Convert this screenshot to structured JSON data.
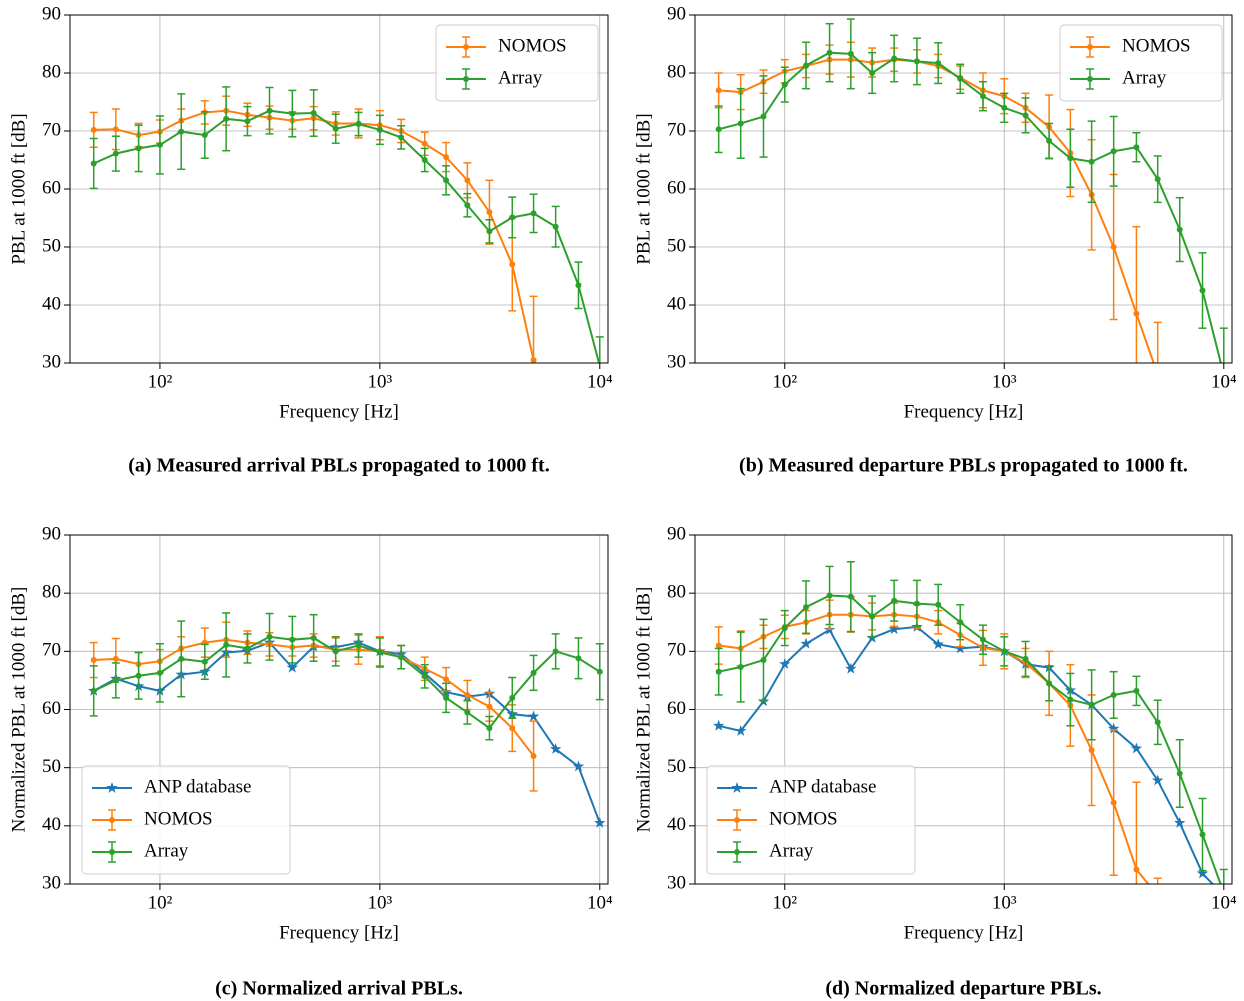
{
  "chart_data": [
    {
      "type": "line",
      "caption": "(a) Measured arrival PBLs propagated to 1000 ft.",
      "xlabel": "Frequency [Hz]",
      "ylabel": "PBL at 1000 ft [dB]",
      "x": [
        50,
        63,
        80,
        100,
        125,
        160,
        200,
        250,
        315,
        400,
        500,
        630,
        800,
        1000,
        1250,
        1600,
        2000,
        2500,
        3150,
        4000,
        5000,
        6300,
        8000,
        10000
      ],
      "log_x": true,
      "grid": true,
      "legend": "upper right",
      "xlim": [
        39,
        10900
      ],
      "ylim": [
        30,
        90
      ],
      "xticks": [
        {
          "value": 100,
          "label": "10²"
        },
        {
          "value": 1000,
          "label": "10³"
        },
        {
          "value": 10000,
          "label": "10⁴"
        }
      ],
      "yticks": [
        30,
        40,
        50,
        60,
        70,
        80,
        90
      ],
      "series": [
        {
          "name": "NOMOS",
          "color": "#ff7f0e",
          "marker": "dot",
          "values": [
            70.2,
            70.3,
            69.3,
            69.9,
            71.8,
            73.2,
            73.5,
            72.8,
            72.3,
            71.8,
            72.2,
            71.3,
            71.3,
            71.0,
            70.0,
            67.8,
            65.5,
            61.5,
            56.0,
            47.0,
            30.5,
            null,
            null,
            null
          ],
          "errors": [
            3,
            3.5,
            2,
            2,
            2,
            2,
            2.5,
            2,
            2,
            1.5,
            2,
            2,
            2.5,
            2.5,
            2,
            2,
            2.5,
            3,
            5.5,
            8,
            11,
            null,
            null,
            null
          ]
        },
        {
          "name": "Array",
          "color": "#2ca02c",
          "marker": "dot",
          "values": [
            64.4,
            66.1,
            67.0,
            67.6,
            69.9,
            69.3,
            72.1,
            71.7,
            73.5,
            73.0,
            73.1,
            70.4,
            71.2,
            70.2,
            68.9,
            65.0,
            61.5,
            57.2,
            52.7,
            55.1,
            55.8,
            53.5,
            43.4,
            29.5
          ],
          "errors": [
            4.3,
            3,
            4,
            5,
            6.5,
            4,
            5.5,
            2.5,
            4,
            4,
            4,
            2.5,
            2,
            2.5,
            2,
            2,
            2.5,
            2,
            2,
            3.5,
            3.3,
            3.5,
            4,
            5
          ]
        }
      ]
    },
    {
      "type": "line",
      "caption": "(b) Measured departure PBLs propagated to 1000 ft.",
      "xlabel": "Frequency [Hz]",
      "ylabel": "PBL at 1000 ft [dB]",
      "x": [
        50,
        63,
        80,
        100,
        125,
        160,
        200,
        250,
        315,
        400,
        500,
        630,
        800,
        1000,
        1250,
        1600,
        2000,
        2500,
        3150,
        4000,
        5000,
        6300,
        8000,
        10000
      ],
      "log_x": true,
      "grid": true,
      "legend": "upper right",
      "xlim": [
        39,
        10900
      ],
      "ylim": [
        30,
        90
      ],
      "xticks": [
        {
          "value": 100,
          "label": "10²"
        },
        {
          "value": 1000,
          "label": "10³"
        },
        {
          "value": 10000,
          "label": "10⁴"
        }
      ],
      "yticks": [
        30,
        40,
        50,
        60,
        70,
        80,
        90
      ],
      "series": [
        {
          "name": "NOMOS",
          "color": "#ff7f0e",
          "marker": "dot",
          "values": [
            77.0,
            76.7,
            78.5,
            80.3,
            81.2,
            82.3,
            82.3,
            81.8,
            82.3,
            82.0,
            81.2,
            79.2,
            77.0,
            76.0,
            74.0,
            70.7,
            66.2,
            59.0,
            50.0,
            38.5,
            28.0,
            null,
            null,
            null
          ],
          "errors": [
            3,
            3,
            2,
            2,
            2,
            2.5,
            3,
            2.5,
            2,
            2,
            2,
            2,
            3,
            3,
            2.5,
            5.5,
            7.5,
            9.5,
            12.5,
            15,
            9,
            null,
            null,
            null
          ]
        },
        {
          "name": "Array",
          "color": "#2ca02c",
          "marker": "dot",
          "values": [
            70.3,
            71.3,
            72.5,
            78.0,
            81.3,
            83.5,
            83.3,
            80.0,
            82.5,
            82.0,
            81.7,
            79.0,
            76.0,
            74.0,
            72.7,
            68.3,
            65.3,
            64.7,
            66.5,
            67.2,
            61.7,
            53.0,
            42.5,
            28.0
          ],
          "errors": [
            4,
            6,
            7,
            3,
            4,
            5,
            6,
            3.5,
            4,
            4,
            3.5,
            2.5,
            2.5,
            2.5,
            3,
            3,
            5,
            7,
            6,
            2.5,
            4,
            5.5,
            6.5,
            8
          ]
        }
      ]
    },
    {
      "type": "line",
      "caption": "(c) Normalized arrival PBLs.",
      "xlabel": "Frequency [Hz]",
      "ylabel": "Normalized PBL at 1000 ft [dB]",
      "x": [
        50,
        63,
        80,
        100,
        125,
        160,
        200,
        250,
        315,
        400,
        500,
        630,
        800,
        1000,
        1250,
        1600,
        2000,
        2500,
        3150,
        4000,
        5000,
        6300,
        8000,
        10000
      ],
      "log_x": true,
      "grid": true,
      "legend": "lower left",
      "xlim": [
        39,
        10900
      ],
      "ylim": [
        30,
        90
      ],
      "xticks": [
        {
          "value": 100,
          "label": "10²"
        },
        {
          "value": 1000,
          "label": "10³"
        },
        {
          "value": 10000,
          "label": "10⁴"
        }
      ],
      "yticks": [
        30,
        40,
        50,
        60,
        70,
        80,
        90
      ],
      "series": [
        {
          "name": "ANP database",
          "color": "#1f77b4",
          "marker": "star",
          "values": [
            63.2,
            65.3,
            64.0,
            63.2,
            66.0,
            66.5,
            69.8,
            70.1,
            71.5,
            67.2,
            70.8,
            70.7,
            71.5,
            70.0,
            69.5,
            66.2,
            63.0,
            62.2,
            62.7,
            59.2,
            58.8,
            53.2,
            50.2,
            40.5
          ]
        },
        {
          "name": "NOMOS",
          "color": "#ff7f0e",
          "marker": "dot",
          "values": [
            68.5,
            68.7,
            67.8,
            68.3,
            70.5,
            71.5,
            72.0,
            71.5,
            71.2,
            70.7,
            71.0,
            70.3,
            70.3,
            70.0,
            69.0,
            67.0,
            65.2,
            62.5,
            60.5,
            56.8,
            52.0,
            null,
            null,
            null
          ],
          "errors": [
            3,
            3.5,
            2,
            2,
            2,
            2.5,
            3,
            2,
            2,
            1.5,
            2,
            2,
            2.5,
            2.5,
            2,
            2,
            2,
            2.5,
            2.5,
            4,
            6,
            null,
            null,
            null
          ]
        },
        {
          "name": "Array",
          "color": "#2ca02c",
          "marker": "dot",
          "values": [
            63.2,
            65.0,
            65.8,
            66.3,
            68.7,
            68.2,
            71.1,
            70.5,
            72.5,
            72.0,
            72.3,
            70.0,
            71.0,
            69.8,
            69.0,
            65.7,
            62.0,
            59.5,
            56.8,
            62.0,
            66.3,
            70.0,
            68.8,
            66.5
          ],
          "errors": [
            4.3,
            3,
            4,
            5,
            6.5,
            3,
            5.5,
            2.5,
            4,
            4,
            4,
            2.5,
            2,
            2.5,
            2,
            2,
            2.5,
            2,
            2,
            3.5,
            3,
            3,
            3.5,
            4.8
          ]
        }
      ]
    },
    {
      "type": "line",
      "caption": "(d) Normalized departure PBLs.",
      "xlabel": "Frequency [Hz]",
      "ylabel": "Normalized PBL at 1000 ft [dB]",
      "x": [
        50,
        63,
        80,
        100,
        125,
        160,
        200,
        250,
        315,
        400,
        500,
        630,
        800,
        1000,
        1250,
        1600,
        2000,
        2500,
        3150,
        4000,
        5000,
        6300,
        8000,
        10000
      ],
      "log_x": true,
      "grid": true,
      "legend": "lower left",
      "xlim": [
        39,
        10900
      ],
      "ylim": [
        30,
        90
      ],
      "xticks": [
        {
          "value": 100,
          "label": "10²"
        },
        {
          "value": 1000,
          "label": "10³"
        },
        {
          "value": 10000,
          "label": "10⁴"
        }
      ],
      "yticks": [
        30,
        40,
        50,
        60,
        70,
        80,
        90
      ],
      "series": [
        {
          "name": "ANP database",
          "color": "#1f77b4",
          "marker": "star",
          "values": [
            57.2,
            56.3,
            61.4,
            67.8,
            71.3,
            73.7,
            67.0,
            72.3,
            73.8,
            74.2,
            71.2,
            70.5,
            70.8,
            70.0,
            67.8,
            67.2,
            63.3,
            60.8,
            56.7,
            53.3,
            47.8,
            40.5,
            31.8,
            28.0
          ]
        },
        {
          "name": "NOMOS",
          "color": "#ff7f0e",
          "marker": "dot",
          "values": [
            71.0,
            70.5,
            72.5,
            74.2,
            75.0,
            76.3,
            76.3,
            76.0,
            76.3,
            76.0,
            75.0,
            72.8,
            70.6,
            70.0,
            68.0,
            64.5,
            60.7,
            53.0,
            44.0,
            32.5,
            28.0,
            null,
            null,
            null
          ],
          "errors": [
            3.2,
            3,
            2,
            2,
            2,
            2.5,
            3,
            2.3,
            2,
            2,
            2,
            2,
            3,
            3,
            2.5,
            5.5,
            7,
            9.5,
            12.5,
            15,
            3,
            null,
            null,
            null
          ]
        },
        {
          "name": "Array",
          "color": "#2ca02c",
          "marker": "dot",
          "values": [
            66.5,
            67.3,
            68.5,
            74.0,
            77.6,
            79.6,
            79.4,
            76.0,
            78.7,
            78.2,
            78.0,
            75.0,
            72.0,
            70.0,
            68.7,
            64.5,
            61.7,
            60.8,
            62.5,
            63.2,
            57.8,
            49.0,
            38.5,
            28.5
          ],
          "errors": [
            4,
            6,
            7,
            3,
            4.5,
            5,
            6,
            3.5,
            3.5,
            4,
            3.5,
            3,
            2.5,
            2.5,
            3,
            3,
            4.5,
            6,
            4,
            2.5,
            3.8,
            5.8,
            6.2,
            4
          ]
        }
      ]
    }
  ]
}
